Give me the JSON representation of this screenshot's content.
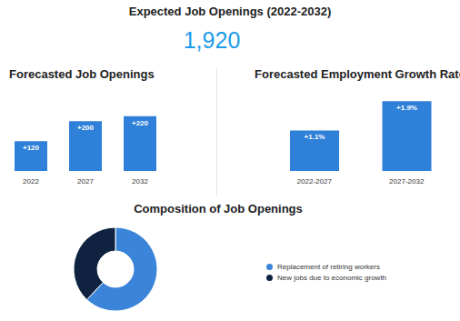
{
  "header": {
    "title": "Expected Job Openings (2022-2032)",
    "total": "1,920"
  },
  "chart_data": [
    {
      "type": "bar",
      "title": "Forecasted Job Openings",
      "categories": [
        "2022",
        "2027",
        "2032"
      ],
      "values": [
        120,
        200,
        220
      ],
      "value_labels": [
        "+120",
        "+200",
        "+220"
      ],
      "color": "#2f80d8",
      "ylim": [
        0,
        340
      ],
      "data_labels": true,
      "tick_labels": "x"
    },
    {
      "type": "bar",
      "title": "Forecasted Employment Growth Rate",
      "categories": [
        "2022-2027",
        "2027-2032"
      ],
      "values": [
        1.1,
        1.9
      ],
      "value_labels": [
        "+1.1%",
        "+1.9%"
      ],
      "color": "#2f80d8",
      "ylim": [
        0,
        2.3
      ],
      "data_labels": true,
      "tick_labels": "x"
    },
    {
      "type": "pie",
      "title": "Composition of Job Openings",
      "categories": [
        "Replacement of retiring workers",
        "New jobs due to economic growth"
      ],
      "values": [
        62,
        38
      ],
      "colors": [
        "#3a84d9",
        "#0f2340"
      ],
      "legend": "right"
    }
  ]
}
